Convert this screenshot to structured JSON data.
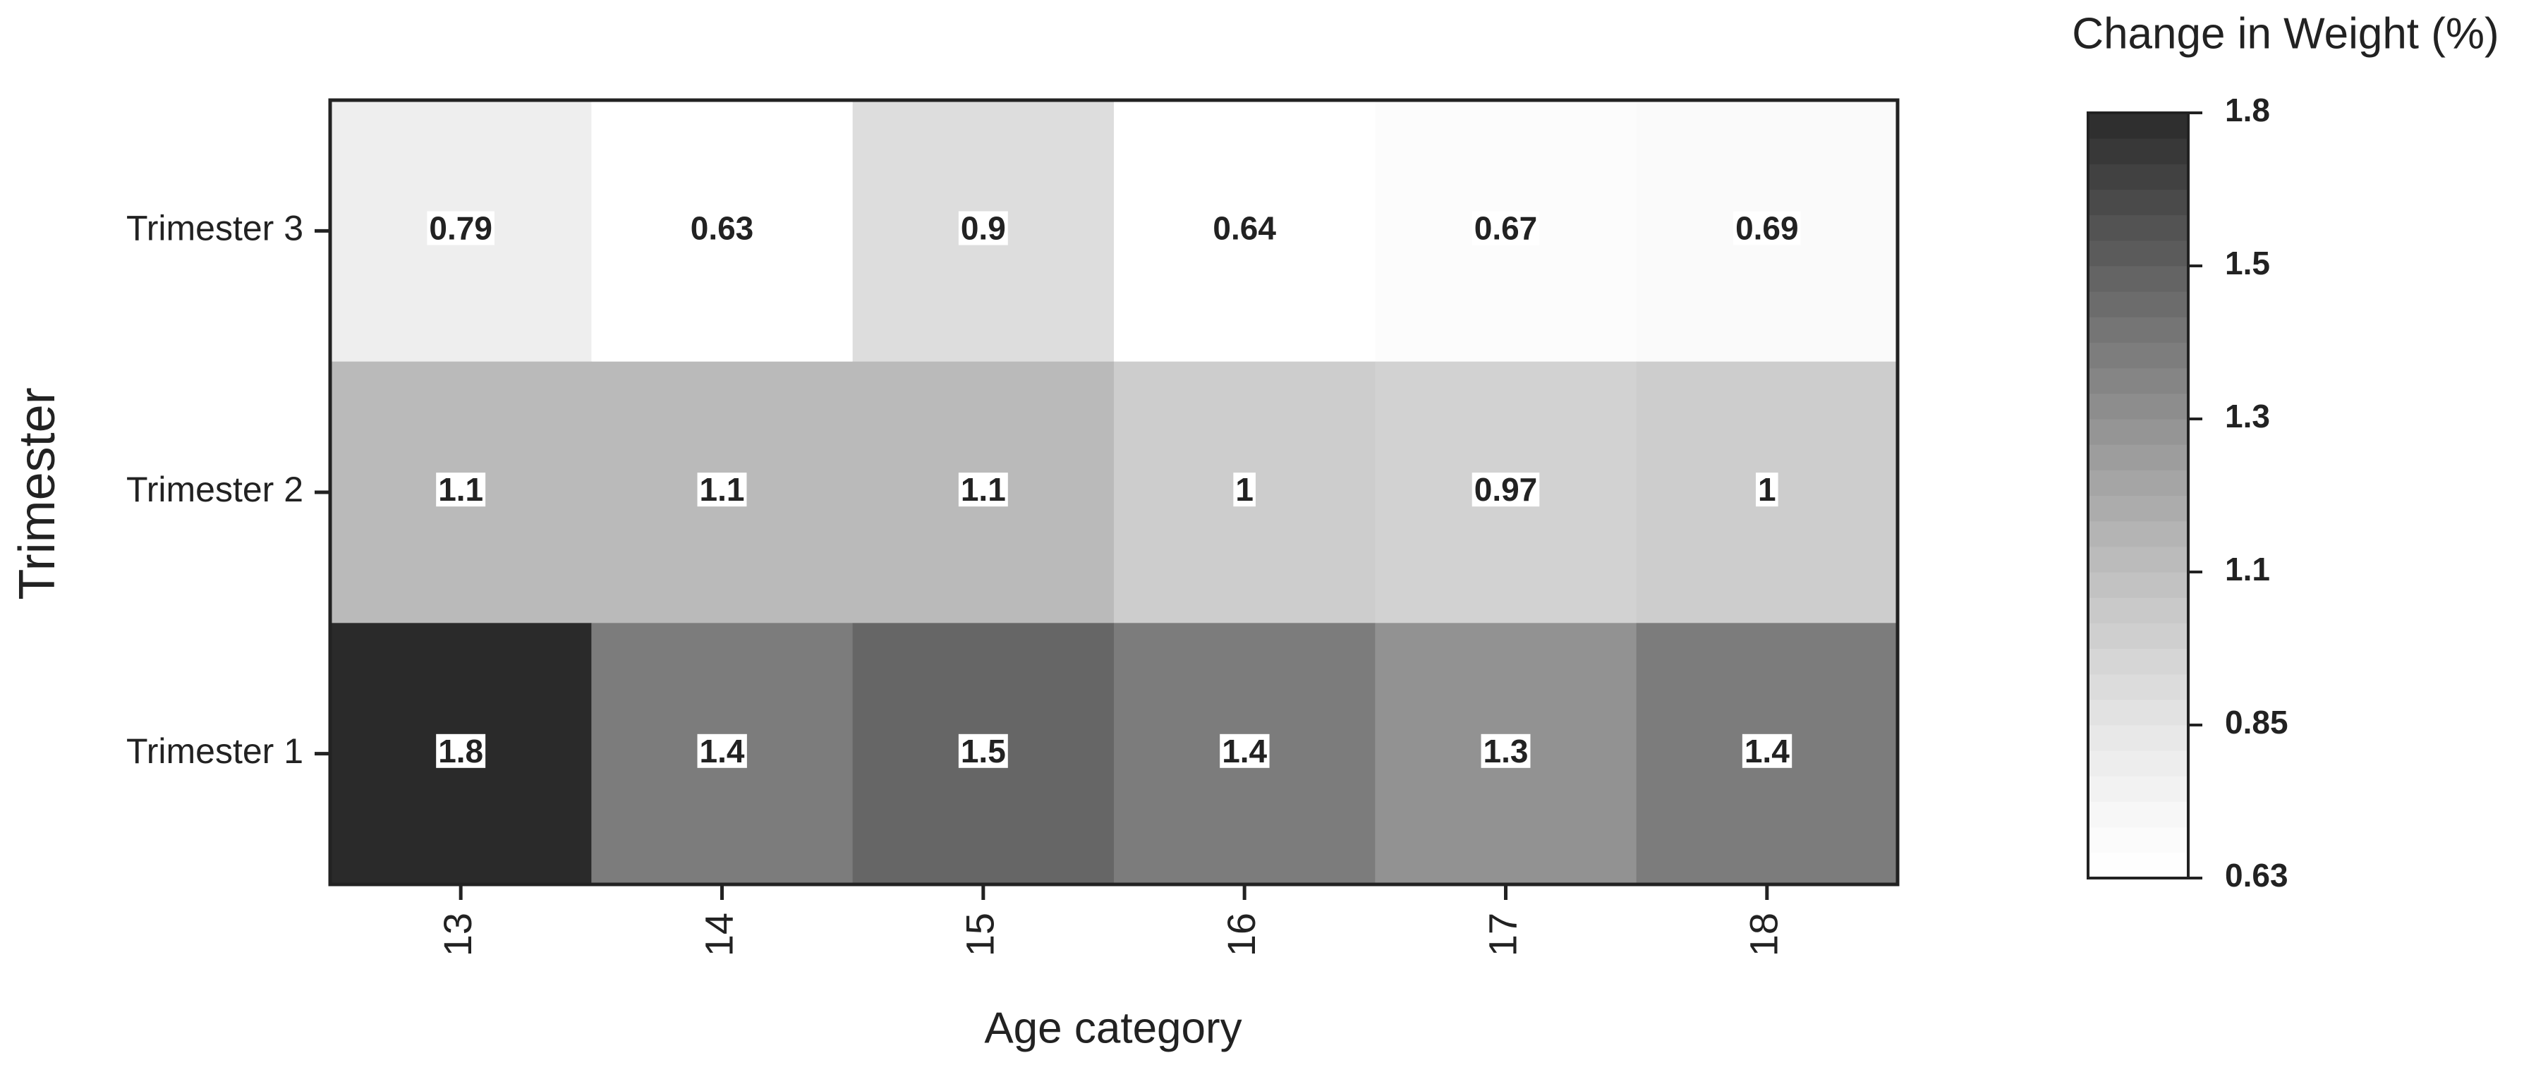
{
  "chart_data": {
    "type": "heatmap",
    "x_label": "Age category",
    "y_label": "Trimester",
    "colorbar_title": "Change in Weight (%)",
    "categories": [
      "13",
      "14",
      "15",
      "16",
      "17",
      "18"
    ],
    "rows": [
      "Trimester 3",
      "Trimester 2",
      "Trimester 1"
    ],
    "values": [
      [
        0.79,
        0.63,
        0.9,
        0.64,
        0.67,
        0.69
      ],
      [
        1.1,
        1.1,
        1.1,
        1,
        0.97,
        1
      ],
      [
        1.75,
        1.4,
        1.5,
        1.4,
        1.3,
        1.4
      ]
    ],
    "value_labels": [
      [
        "0.79",
        "0.63",
        "0.9",
        "0.64",
        "0.67",
        "0.69"
      ],
      [
        "1.1",
        "1.1",
        "1.1",
        "1",
        "0.97",
        "1"
      ],
      [
        "1.8",
        "1.4",
        "1.5",
        "1.4",
        "1.3",
        "1.4"
      ]
    ],
    "clim": [
      0.63,
      1.75
    ],
    "cticks": [
      {
        "value": 0.63,
        "label": "0.63"
      },
      {
        "value": 0.854,
        "label": "0.85"
      },
      {
        "value": 1.078,
        "label": "1.1"
      },
      {
        "value": 1.302,
        "label": "1.3"
      },
      {
        "value": 1.526,
        "label": "1.5"
      },
      {
        "value": 1.75,
        "label": "1.8"
      }
    ],
    "color_low": "#ffffff",
    "color_high": "#2a2a2a"
  }
}
